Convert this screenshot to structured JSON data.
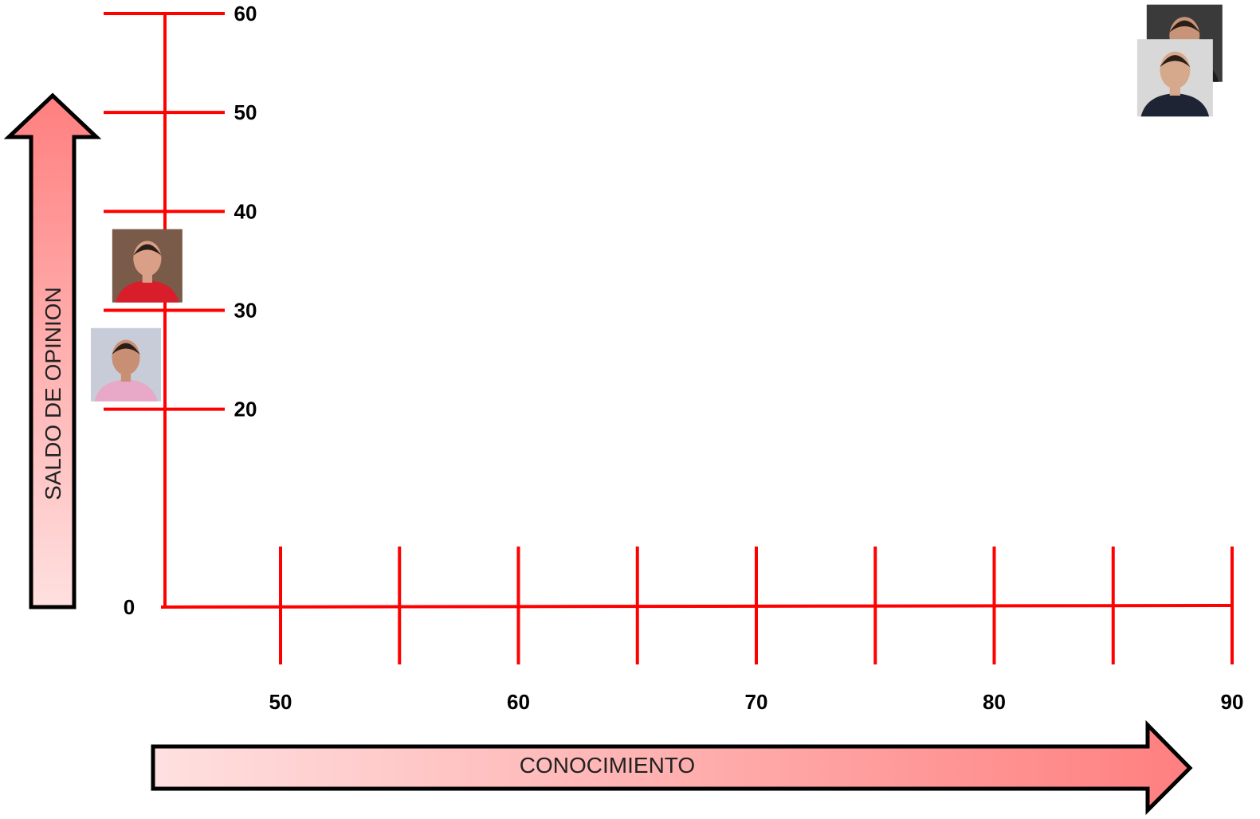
{
  "chart_data": {
    "type": "scatter",
    "xlabel": "CONOCIMIENTO",
    "ylabel": "SALDO DE OPINION",
    "xlim": [
      45,
      90
    ],
    "ylim": [
      0,
      60
    ],
    "x_ticks": [
      50,
      55,
      60,
      65,
      70,
      75,
      80,
      85,
      90
    ],
    "x_tick_labels": [
      "50",
      "",
      "60",
      "",
      "70",
      "",
      "80",
      "",
      "90"
    ],
    "y_ticks": [
      0,
      20,
      30,
      40,
      50,
      60
    ],
    "y_tick_labels": [
      "0",
      "20",
      "30",
      "40",
      "50",
      "60"
    ],
    "grid": false,
    "axis_color": "#ff0000",
    "arrow_gradient": [
      "#ffe0e0",
      "#ff7f7f"
    ],
    "points": [
      {
        "x": 88,
        "y": 57,
        "marker": "portrait-icon",
        "colors": [
          "#3a3a3a",
          "#c89478",
          "#1c1c1c"
        ]
      },
      {
        "x": 87.6,
        "y": 53.5,
        "marker": "portrait-icon",
        "colors": [
          "#d8d8d8",
          "#d7a98c",
          "#1e2433"
        ]
      },
      {
        "x": 44.4,
        "y": 34.5,
        "marker": "portrait-icon",
        "colors": [
          "#7a5a48",
          "#d9a087",
          "#d81e2a"
        ]
      },
      {
        "x": 43.5,
        "y": 24.5,
        "marker": "portrait-icon",
        "colors": [
          "#c8ccd8",
          "#c88f74",
          "#e8a8c8"
        ]
      }
    ]
  }
}
